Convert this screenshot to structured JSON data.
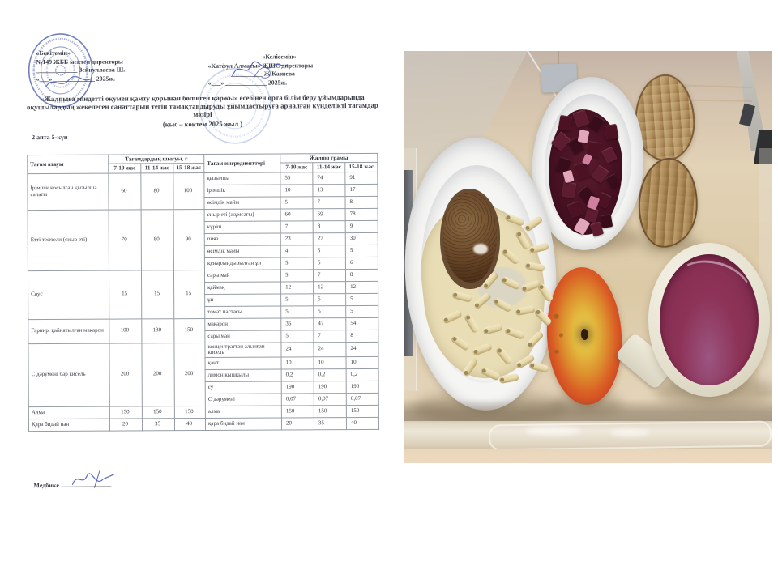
{
  "doc": {
    "approve": {
      "line1": "«Бекітемін»",
      "line2": "№149 ЖББ мектеп директоры",
      "line3": "_____________ Зейнуллаева Ш.",
      "line4": "«___» _____________ 2025ж."
    },
    "agree": {
      "line1": "«Келісемін»",
      "line2": "«Катфул Алматы» ЖШС директоры",
      "line3": "__________ Ж.Казиева",
      "line4": "«___» _____________ 2025ж."
    },
    "title": "«Жалпыға міндетті оқумен қамту қорынан бөлінген қаржы» есебінен орта білім беру ұйымдарында оқушылардың жекелеген санаттарын тегін тамақтандыруды ұйымдастыруға арналған күнделікті тағамдар мәзірі",
    "subtitle": "(қыс – көктем 2025 жыл )",
    "week_day": "2 апта 5-күн",
    "nurse_label": "Медбике",
    "table": {
      "headers": {
        "dish": "Тағам атауы",
        "output": "Тағамдардың шығуы, г",
        "ingredients": "Тағам ингредиенттері",
        "total": "Жалпы грамы",
        "age1": "7-10 жас",
        "age2": "11-14 жас",
        "age3": "15-18 жас"
      },
      "dishes": [
        {
          "name": "Ірімшік қосылған қызылша салаты",
          "out": [
            "60",
            "80",
            "100"
          ],
          "ingredients": [
            {
              "name": "қызылша",
              "g": [
                "55",
                "74",
                "91"
              ]
            },
            {
              "name": "ірімшік",
              "g": [
                "10",
                "13",
                "17"
              ]
            },
            {
              "name": "өсімдік майы",
              "g": [
                "5",
                "7",
                "8"
              ]
            }
          ]
        },
        {
          "name": "Етті тефтели (сиыр еті)",
          "out": [
            "70",
            "80",
            "90"
          ],
          "ingredients": [
            {
              "name": "сиыр еті (жұмсағы)",
              "g": [
                "60",
                "69",
                "78"
              ]
            },
            {
              "name": "күріш",
              "g": [
                "7",
                "8",
                "9"
              ]
            },
            {
              "name": "пияз",
              "g": [
                "23",
                "27",
                "30"
              ]
            },
            {
              "name": "өсімдік майы",
              "g": [
                "4",
                "5",
                "5"
              ]
            },
            {
              "name": "құнарландырылған ұн",
              "g": [
                "5",
                "5",
                "6"
              ]
            }
          ]
        },
        {
          "name": "Соус",
          "out": [
            "15",
            "15",
            "15"
          ],
          "ingredients": [
            {
              "name": "сары май",
              "g": [
                "5",
                "7",
                "8"
              ]
            },
            {
              "name": "қаймақ",
              "g": [
                "12",
                "12",
                "12"
              ]
            },
            {
              "name": "ұн",
              "g": [
                "5",
                "5",
                "5"
              ]
            },
            {
              "name": "томат пастасы",
              "g": [
                "5",
                "5",
                "5"
              ]
            }
          ]
        },
        {
          "name": "Гарнир: қайнатылған макарон",
          "out": [
            "100",
            "130",
            "150"
          ],
          "ingredients": [
            {
              "name": "макарон",
              "g": [
                "36",
                "47",
                "54"
              ]
            },
            {
              "name": "сары май",
              "g": [
                "5",
                "7",
                "8"
              ]
            }
          ]
        },
        {
          "name": "С дәрумені бар кисель",
          "out": [
            "200",
            "200",
            "200"
          ],
          "ingredients": [
            {
              "name": "концентраттан алынған кисель",
              "g": [
                "24",
                "24",
                "24"
              ]
            },
            {
              "name": "қант",
              "g": [
                "10",
                "10",
                "10"
              ]
            },
            {
              "name": "лимон қышқылы",
              "g": [
                "0,2",
                "0,2",
                "0,2"
              ]
            },
            {
              "name": "су",
              "g": [
                "190",
                "190",
                "190"
              ]
            },
            {
              "name": "С дәрумені",
              "g": [
                "0,07",
                "0,07",
                "0,07"
              ]
            }
          ]
        },
        {
          "name": "Алма",
          "out": [
            "150",
            "150",
            "150"
          ],
          "ingredients": [
            {
              "name": "алма",
              "g": [
                "150",
                "150",
                "150"
              ]
            }
          ]
        },
        {
          "name": "Қара бидай нан",
          "out": [
            "20",
            "35",
            "40"
          ],
          "ingredients": [
            {
              "name": "қара бидай нан",
              "g": [
                "20",
                "35",
                "40"
              ]
            }
          ]
        }
      ]
    }
  },
  "photo": {
    "items": [
      "pasta-with-meatball-plate",
      "beet-salad-plate",
      "rye-bread-slices",
      "apple",
      "berry-kissel-cup",
      "plastic-tray-on-wood-table"
    ],
    "colors": {
      "wood": "#dccaa6",
      "plate": "#f5f5f3",
      "pasta": "#e9ddb6",
      "meatball": "#6e4c2c",
      "beet_salad": "#471122",
      "salad_pink": "#e2a6ba",
      "bread": "#ad8a58",
      "apple_edge": "#ce3f20",
      "apple_center": "#e6cb52",
      "kissel": "#8e3358",
      "cup": "#efecdf"
    }
  }
}
